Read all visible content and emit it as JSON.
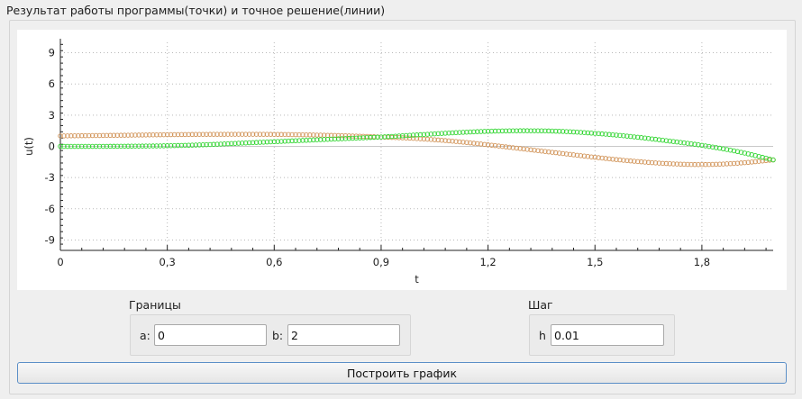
{
  "window": {
    "group_title": "Результат работы программы(точки) и точное решение(линии)"
  },
  "chart_data": {
    "type": "scatter",
    "xlabel": "t",
    "ylabel": "u(t)",
    "xlim": [
      0,
      2
    ],
    "ylim": [
      -10,
      10
    ],
    "x_ticks": [
      "0",
      "0,3",
      "0,6",
      "0,9",
      "1,2",
      "1,5",
      "1,8"
    ],
    "x_tick_values": [
      0,
      0.3,
      0.6,
      0.9,
      1.2,
      1.5,
      1.8
    ],
    "y_ticks": [
      "9",
      "6",
      "3",
      "0",
      "-3",
      "-6",
      "-9"
    ],
    "y_tick_values": [
      9,
      6,
      3,
      0,
      -3,
      -6,
      -9
    ],
    "grid": true,
    "series": [
      {
        "color": "#d2955a",
        "points": [
          [
            0,
            1.0
          ],
          [
            0.1,
            1.04
          ],
          [
            0.2,
            1.08
          ],
          [
            0.3,
            1.12
          ],
          [
            0.4,
            1.15
          ],
          [
            0.5,
            1.16
          ],
          [
            0.6,
            1.15
          ],
          [
            0.7,
            1.1
          ],
          [
            0.8,
            1.02
          ],
          [
            0.9,
            0.9
          ],
          [
            1.0,
            0.75
          ],
          [
            1.1,
            0.5
          ],
          [
            1.2,
            0.15
          ],
          [
            1.3,
            -0.25
          ],
          [
            1.4,
            -0.65
          ],
          [
            1.5,
            -1.05
          ],
          [
            1.6,
            -1.4
          ],
          [
            1.7,
            -1.65
          ],
          [
            1.8,
            -1.75
          ],
          [
            1.9,
            -1.62
          ],
          [
            2.0,
            -1.3
          ]
        ]
      },
      {
        "color": "#33d633",
        "points": [
          [
            0,
            0.0
          ],
          [
            0.1,
            0.0
          ],
          [
            0.2,
            0.02
          ],
          [
            0.3,
            0.06
          ],
          [
            0.4,
            0.15
          ],
          [
            0.5,
            0.3
          ],
          [
            0.6,
            0.45
          ],
          [
            0.7,
            0.6
          ],
          [
            0.8,
            0.75
          ],
          [
            0.9,
            0.9
          ],
          [
            1.0,
            1.1
          ],
          [
            1.1,
            1.3
          ],
          [
            1.2,
            1.45
          ],
          [
            1.3,
            1.5
          ],
          [
            1.4,
            1.45
          ],
          [
            1.5,
            1.25
          ],
          [
            1.6,
            0.95
          ],
          [
            1.7,
            0.55
          ],
          [
            1.8,
            0.1
          ],
          [
            1.9,
            -0.5
          ],
          [
            2.0,
            -1.3
          ]
        ]
      }
    ]
  },
  "bounds": {
    "title": "Границы",
    "a_label": "a:",
    "a_value": "0",
    "b_label": "b:",
    "b_value": "2"
  },
  "step": {
    "title": "Шаг",
    "h_label": "h",
    "h_value": "0.01"
  },
  "actions": {
    "plot_label": "Построить график"
  }
}
